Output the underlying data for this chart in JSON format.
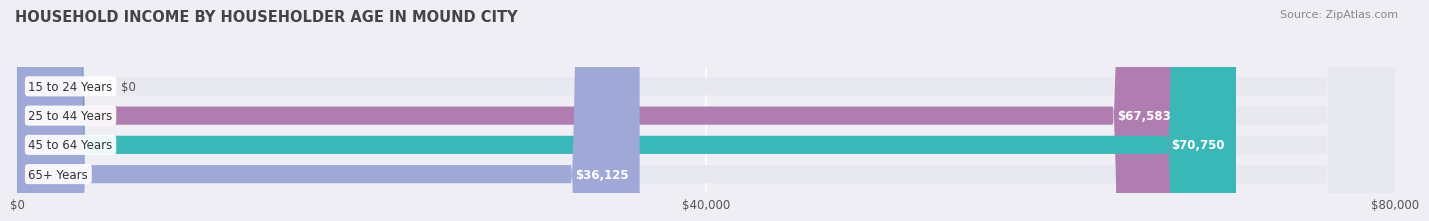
{
  "title": "HOUSEHOLD INCOME BY HOUSEHOLDER AGE IN MOUND CITY",
  "source": "Source: ZipAtlas.com",
  "categories": [
    "15 to 24 Years",
    "25 to 44 Years",
    "45 to 64 Years",
    "65+ Years"
  ],
  "values": [
    0,
    67583,
    70750,
    36125
  ],
  "value_labels": [
    "$0",
    "$67,583",
    "$70,750",
    "$36,125"
  ],
  "bar_colors": [
    "#a8c4e0",
    "#b07db0",
    "#3ab8b8",
    "#a0a8d8"
  ],
  "bar_bg_color": "#e8e8f0",
  "x_max": 80000,
  "x_ticks": [
    0,
    40000,
    80000
  ],
  "x_tick_labels": [
    "$0",
    "$40,000",
    "$80,000"
  ],
  "background_color": "#eeeef4",
  "title_fontsize": 10.5,
  "source_fontsize": 8
}
